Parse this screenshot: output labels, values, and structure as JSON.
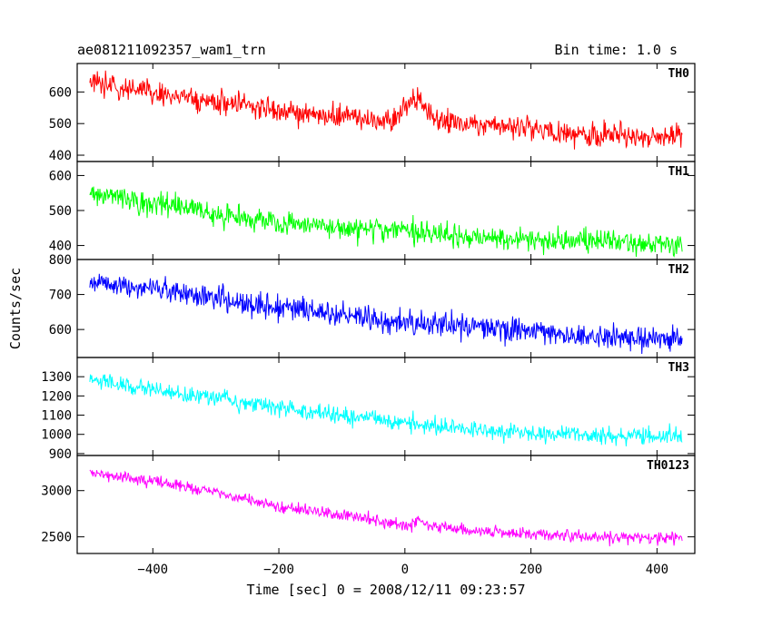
{
  "chart_data": {
    "type": "line",
    "title": "ae081211092357_wam1_trn",
    "bin_time_label": "Bin time: 1.0 s",
    "xlabel": "Time [sec] 0 = 2008/12/11 09:23:57",
    "ylabel": "Counts/sec",
    "xlim": [
      -520,
      460
    ],
    "x_ticks": [
      -400,
      -200,
      0,
      200,
      400
    ],
    "x_tick_labels": [
      "−400",
      "−200",
      "0",
      "200",
      "400"
    ],
    "x_start": -500,
    "x_end": 440,
    "panels": [
      {
        "name": "TH0",
        "color": "#ff0000",
        "ylim": [
          380,
          690
        ],
        "y_ticks": [
          400,
          500,
          600
        ],
        "y_tick_labels": [
          "400",
          "500",
          "600"
        ],
        "trend": [
          [
            -500,
            630
          ],
          [
            -400,
            600
          ],
          [
            -300,
            565
          ],
          [
            -200,
            540
          ],
          [
            -100,
            520
          ],
          [
            -20,
            510
          ],
          [
            0,
            550
          ],
          [
            20,
            590
          ],
          [
            40,
            520
          ],
          [
            100,
            500
          ],
          [
            200,
            480
          ],
          [
            300,
            465
          ],
          [
            440,
            460
          ]
        ],
        "noise": 26
      },
      {
        "name": "TH1",
        "color": "#00ff00",
        "ylim": [
          360,
          640
        ],
        "y_ticks": [
          400,
          500,
          600
        ],
        "y_tick_labels": [
          "400",
          "500",
          "600"
        ],
        "trend": [
          [
            -500,
            550
          ],
          [
            -400,
            520
          ],
          [
            -300,
            490
          ],
          [
            -200,
            465
          ],
          [
            -100,
            450
          ],
          [
            0,
            440
          ],
          [
            100,
            425
          ],
          [
            200,
            415
          ],
          [
            300,
            410
          ],
          [
            440,
            405
          ]
        ],
        "noise": 22
      },
      {
        "name": "TH2",
        "color": "#0000ff",
        "ylim": [
          520,
          800
        ],
        "y_ticks": [
          600,
          700,
          800
        ],
        "y_tick_labels": [
          "600",
          "700",
          "800"
        ],
        "trend": [
          [
            -500,
            730
          ],
          [
            -400,
            720
          ],
          [
            -300,
            690
          ],
          [
            -200,
            660
          ],
          [
            -100,
            640
          ],
          [
            0,
            620
          ],
          [
            100,
            610
          ],
          [
            200,
            595
          ],
          [
            300,
            580
          ],
          [
            440,
            575
          ]
        ],
        "noise": 24
      },
      {
        "name": "TH3",
        "color": "#00ffff",
        "ylim": [
          890,
          1400
        ],
        "y_ticks": [
          900,
          1000,
          1100,
          1200,
          1300
        ],
        "y_tick_labels": [
          "900",
          "1000",
          "1100",
          "1200",
          "1300"
        ],
        "trend": [
          [
            -500,
            1280
          ],
          [
            -400,
            1230
          ],
          [
            -300,
            1190
          ],
          [
            -200,
            1140
          ],
          [
            -100,
            1100
          ],
          [
            0,
            1060
          ],
          [
            100,
            1030
          ],
          [
            200,
            1010
          ],
          [
            300,
            995
          ],
          [
            440,
            985
          ]
        ],
        "noise": 32
      },
      {
        "name": "TH0123",
        "color": "#ff00ff",
        "ylim": [
          2320,
          3380
        ],
        "y_ticks": [
          2500,
          3000
        ],
        "y_tick_labels": [
          "2500",
          "3000"
        ],
        "trend": [
          [
            -500,
            3200
          ],
          [
            -400,
            3100
          ],
          [
            -300,
            2980
          ],
          [
            -200,
            2820
          ],
          [
            -100,
            2740
          ],
          [
            -20,
            2640
          ],
          [
            0,
            2620
          ],
          [
            20,
            2680
          ],
          [
            40,
            2620
          ],
          [
            100,
            2570
          ],
          [
            200,
            2530
          ],
          [
            300,
            2500
          ],
          [
            440,
            2480
          ]
        ],
        "noise": 45
      }
    ]
  }
}
